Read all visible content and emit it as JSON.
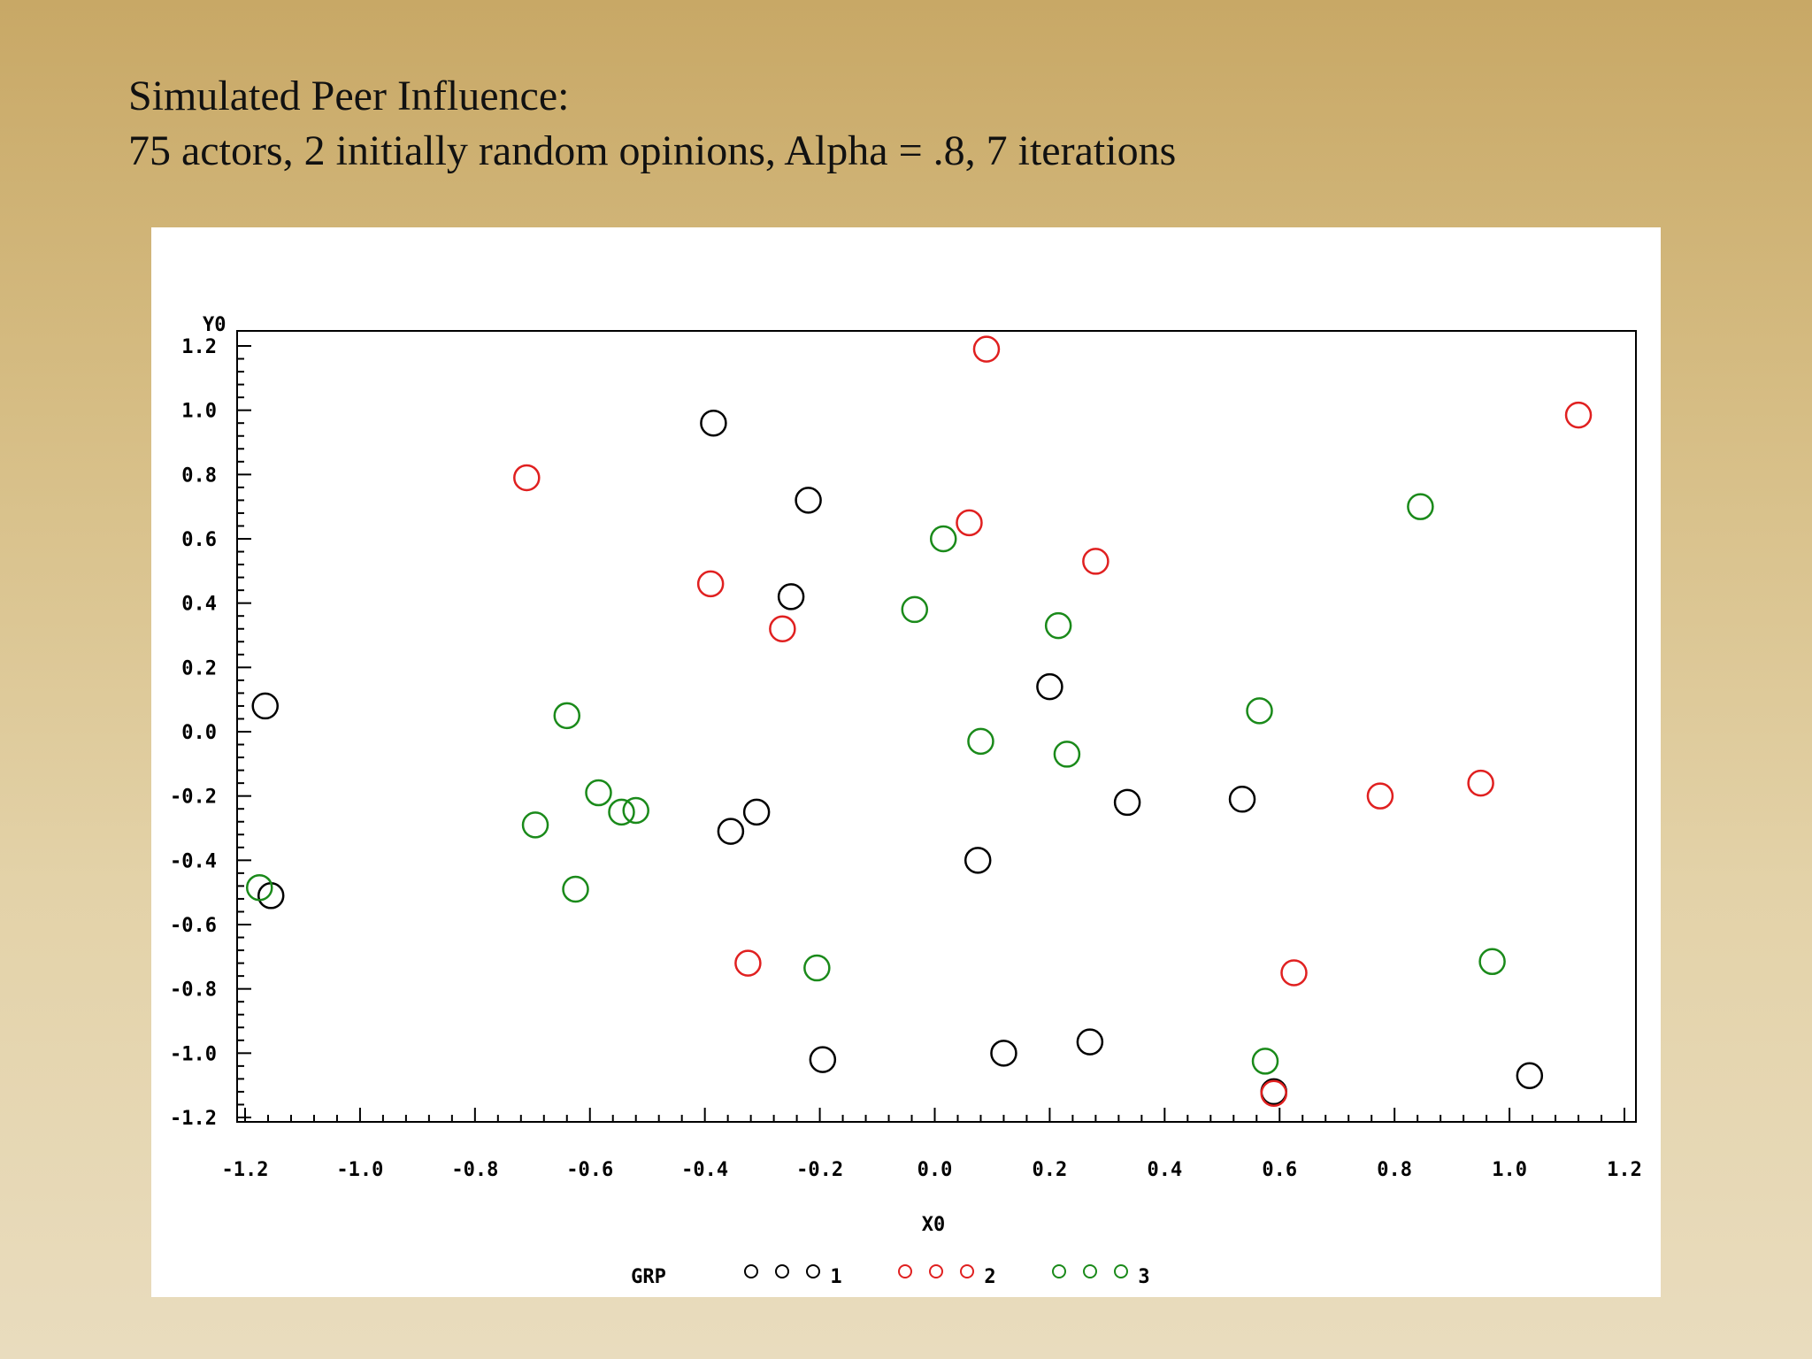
{
  "slide": {
    "title_line1": "Simulated Peer Influence:",
    "title_line2": "75 actors, 2 initially random opinions, Alpha = .8,  7 iterations"
  },
  "chart_data": {
    "type": "scatter",
    "xlabel": "X0",
    "ylabel": "Y0",
    "xlim": [
      -1.2,
      1.2
    ],
    "ylim": [
      -1.2,
      1.2
    ],
    "x_ticks": [
      "-1.2",
      "-1.0",
      "-0.8",
      "-0.6",
      "-0.4",
      "-0.2",
      "0.0",
      "0.2",
      "0.4",
      "0.6",
      "0.8",
      "1.0",
      "1.2"
    ],
    "y_ticks": [
      "1.2",
      "1.0",
      "0.8",
      "0.6",
      "0.4",
      "0.2",
      "0.0",
      "-0.2",
      "-0.4",
      "-0.6",
      "-0.8",
      "-1.0",
      "-1.2"
    ],
    "legend": {
      "title": "GRP",
      "placement": "bottom",
      "entries": [
        {
          "label": "1",
          "color": "#000000"
        },
        {
          "label": "2",
          "color": "#e02020"
        },
        {
          "label": "3",
          "color": "#1a8a1a"
        }
      ]
    },
    "series": [
      {
        "name": "1",
        "color": "#000000",
        "points": [
          [
            -1.165,
            0.08
          ],
          [
            -0.385,
            0.96
          ],
          [
            -0.22,
            0.72
          ],
          [
            -0.25,
            0.42
          ],
          [
            -1.155,
            -0.51
          ],
          [
            -0.355,
            -0.31
          ],
          [
            -0.31,
            -0.25
          ],
          [
            0.2,
            0.14
          ],
          [
            0.335,
            -0.22
          ],
          [
            0.535,
            -0.21
          ],
          [
            0.075,
            -0.4
          ],
          [
            -0.195,
            -1.02
          ],
          [
            0.12,
            -1.0
          ],
          [
            0.27,
            -0.965
          ],
          [
            0.59,
            -1.12
          ],
          [
            1.035,
            -1.07
          ]
        ]
      },
      {
        "name": "2",
        "color": "#e02020",
        "points": [
          [
            0.09,
            1.19
          ],
          [
            1.12,
            0.985
          ],
          [
            -0.71,
            0.79
          ],
          [
            0.06,
            0.65
          ],
          [
            0.28,
            0.53
          ],
          [
            -0.39,
            0.46
          ],
          [
            -0.265,
            0.32
          ],
          [
            0.775,
            -0.2
          ],
          [
            0.95,
            -0.16
          ],
          [
            -0.325,
            -0.72
          ],
          [
            0.625,
            -0.75
          ],
          [
            0.59,
            -1.125
          ]
        ]
      },
      {
        "name": "3",
        "color": "#1a8a1a",
        "points": [
          [
            0.845,
            0.7
          ],
          [
            0.015,
            0.6
          ],
          [
            -0.035,
            0.38
          ],
          [
            0.215,
            0.33
          ],
          [
            -0.64,
            0.05
          ],
          [
            0.08,
            -0.03
          ],
          [
            0.23,
            -0.07
          ],
          [
            0.565,
            0.065
          ],
          [
            -0.585,
            -0.19
          ],
          [
            -0.545,
            -0.25
          ],
          [
            -0.52,
            -0.245
          ],
          [
            -0.695,
            -0.29
          ],
          [
            -0.625,
            -0.49
          ],
          [
            -1.175,
            -0.485
          ],
          [
            -0.205,
            -0.735
          ],
          [
            0.97,
            -0.715
          ],
          [
            0.575,
            -1.025
          ]
        ]
      }
    ]
  }
}
